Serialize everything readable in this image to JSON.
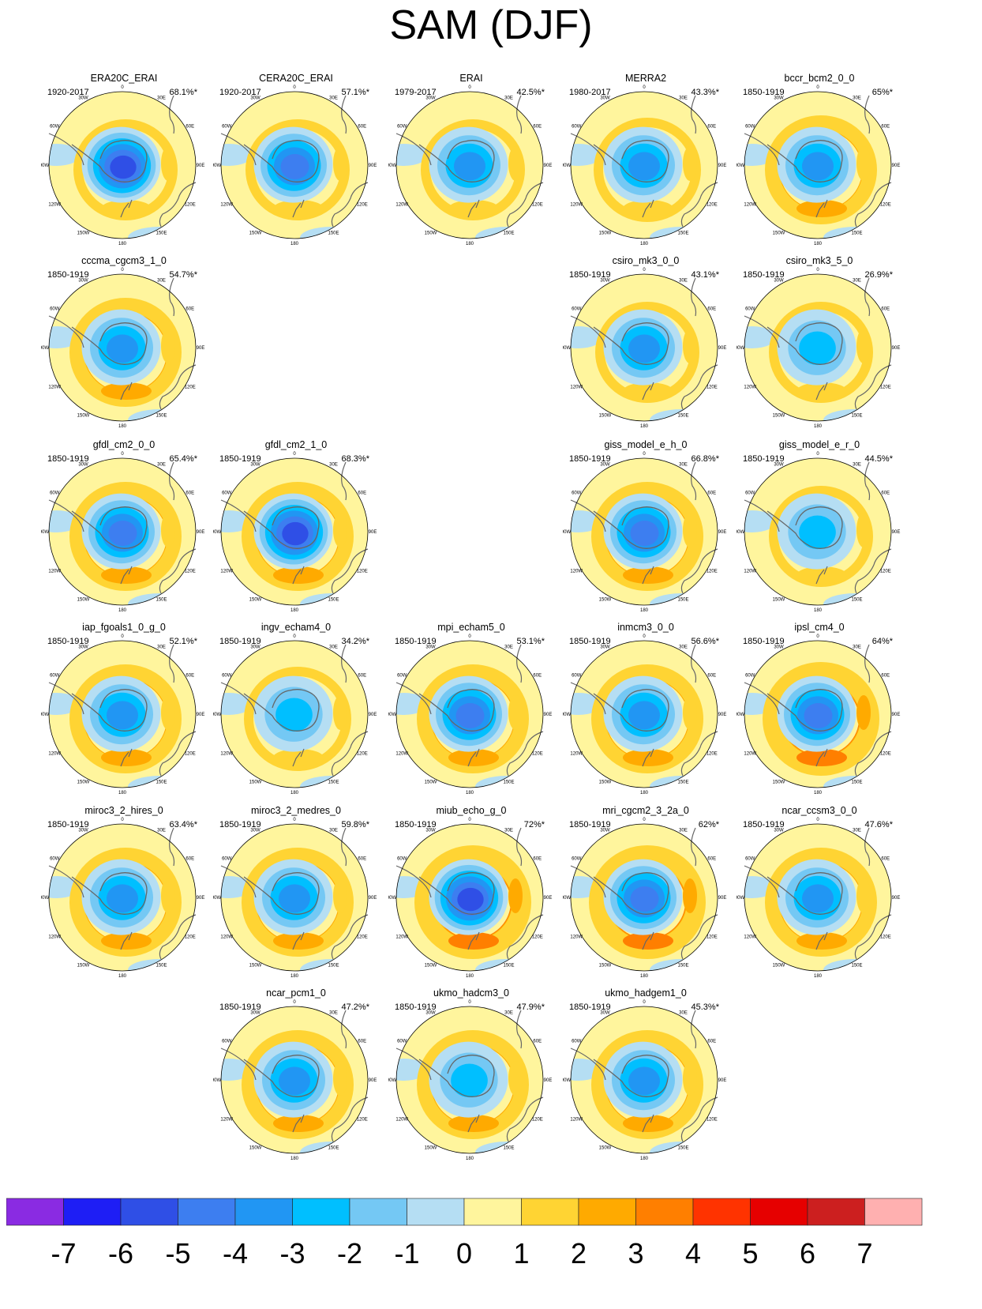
{
  "title": "SAM (DJF)",
  "lon_labels": [
    "0",
    "30E",
    "60E",
    "90E",
    "120E",
    "150E",
    "180",
    "150W",
    "120W",
    "90W",
    "60W",
    "30W"
  ],
  "panels": [
    {
      "name": "ERA20C_ERAI",
      "period": "1920-2017",
      "pct": "68.1%*",
      "row": 0,
      "col": 0,
      "min": -6,
      "max": 2,
      "ring": 1.5
    },
    {
      "name": "CERA20C_ERAI",
      "period": "1920-2017",
      "pct": "57.1%*",
      "row": 0,
      "col": 1,
      "min": -5,
      "max": 2,
      "ring": 1.5
    },
    {
      "name": "ERAI",
      "period": "1979-2017",
      "pct": "42.5%*",
      "row": 0,
      "col": 2,
      "min": -4,
      "max": 2,
      "ring": 1.5
    },
    {
      "name": "MERRA2",
      "period": "1980-2017",
      "pct": "43.3%*",
      "row": 0,
      "col": 3,
      "min": -4,
      "max": 1,
      "ring": 1
    },
    {
      "name": "bccr_bcm2_0_0",
      "period": "1850-1919",
      "pct": "65%*",
      "row": 0,
      "col": 4,
      "min": -4,
      "max": 2,
      "ring": 2
    },
    {
      "name": "cccma_cgcm3_1_0",
      "period": "1850-1919",
      "pct": "54.7%*",
      "row": 1,
      "col": 0,
      "min": -4,
      "max": 2,
      "ring": 2
    },
    {
      "name": "csiro_mk3_0_0",
      "period": "1850-1919",
      "pct": "43.1%*",
      "row": 1,
      "col": 3,
      "min": -4,
      "max": 2,
      "ring": 1.5
    },
    {
      "name": "csiro_mk3_5_0",
      "period": "1850-1919",
      "pct": "26.9%*",
      "row": 1,
      "col": 4,
      "min": -3,
      "max": 2,
      "ring": 1.5
    },
    {
      "name": "gfdl_cm2_0_0",
      "period": "1850-1919",
      "pct": "65.4%*",
      "row": 2,
      "col": 0,
      "min": -5,
      "max": 2,
      "ring": 2
    },
    {
      "name": "gfdl_cm2_1_0",
      "period": "1850-1919",
      "pct": "68.3%*",
      "row": 2,
      "col": 1,
      "min": -6,
      "max": 3,
      "ring": 2
    },
    {
      "name": "giss_model_e_h_0",
      "period": "1850-1919",
      "pct": "66.8%*",
      "row": 2,
      "col": 3,
      "min": -5,
      "max": 2,
      "ring": 2
    },
    {
      "name": "giss_model_e_r_0",
      "period": "1850-1919",
      "pct": "44.5%*",
      "row": 2,
      "col": 4,
      "min": -3,
      "max": 2,
      "ring": 1.5
    },
    {
      "name": "iap_fgoals1_0_g_0",
      "period": "1850-1919",
      "pct": "52.1%*",
      "row": 3,
      "col": 0,
      "min": -4,
      "max": 2,
      "ring": 2
    },
    {
      "name": "ingv_echam4_0",
      "period": "1850-1919",
      "pct": "34.2%*",
      "row": 3,
      "col": 1,
      "min": -3,
      "max": 2,
      "ring": 1
    },
    {
      "name": "mpi_echam5_0",
      "period": "1850-1919",
      "pct": "53.1%*",
      "row": 3,
      "col": 2,
      "min": -5,
      "max": 2,
      "ring": 2
    },
    {
      "name": "inmcm3_0_0",
      "period": "1850-1919",
      "pct": "56.6%*",
      "row": 3,
      "col": 3,
      "min": -4,
      "max": 3,
      "ring": 2
    },
    {
      "name": "ipsl_cm4_0",
      "period": "1850-1919",
      "pct": "64%*",
      "row": 3,
      "col": 4,
      "min": -5,
      "max": 4,
      "ring": 3
    },
    {
      "name": "miroc3_2_hires_0",
      "period": "1850-1919",
      "pct": "63.4%*",
      "row": 4,
      "col": 0,
      "min": -4,
      "max": 2,
      "ring": 2
    },
    {
      "name": "miroc3_2_medres_0",
      "period": "1850-1919",
      "pct": "59.8%*",
      "row": 4,
      "col": 1,
      "min": -4,
      "max": 3,
      "ring": 2
    },
    {
      "name": "miub_echo_g_0",
      "period": "1850-1919",
      "pct": "72%*",
      "row": 4,
      "col": 2,
      "min": -6,
      "max": 3,
      "ring": 3
    },
    {
      "name": "mri_cgcm2_3_2a_0",
      "period": "1850-1919",
      "pct": "62%*",
      "row": 4,
      "col": 3,
      "min": -5,
      "max": 3,
      "ring": 3
    },
    {
      "name": "ncar_ccsm3_0_0",
      "period": "1850-1919",
      "pct": "47.6%*",
      "row": 4,
      "col": 4,
      "min": -4,
      "max": 3,
      "ring": 2
    },
    {
      "name": "ncar_pcm1_0",
      "period": "1850-1919",
      "pct": "47.2%*",
      "row": 5,
      "col": 1,
      "min": -4,
      "max": 2,
      "ring": 2
    },
    {
      "name": "ukmo_hadcm3_0",
      "period": "1850-1919",
      "pct": "47.9%*",
      "row": 5,
      "col": 2,
      "min": -3,
      "max": 2,
      "ring": 2
    },
    {
      "name": "ukmo_hadgem1_0",
      "period": "1850-1919",
      "pct": "45.3%*",
      "row": 5,
      "col": 3,
      "min": -4,
      "max": 2,
      "ring": 2
    }
  ],
  "colorbar": {
    "labels": [
      "-7",
      "-6",
      "-5",
      "-4",
      "-3",
      "-2",
      "-1",
      "0",
      "1",
      "2",
      "3",
      "4",
      "5",
      "6",
      "7"
    ],
    "colors": [
      "#8a2be2",
      "#1e1ef5",
      "#2f4fe6",
      "#3d7ef0",
      "#2196f3",
      "#00bfff",
      "#74c8f4",
      "#b5def3",
      "#fff59d",
      "#ffd433",
      "#ffaa00",
      "#ff7f00",
      "#ff3300",
      "#e60000",
      "#cc1f1f",
      "#ffb0b0"
    ]
  }
}
